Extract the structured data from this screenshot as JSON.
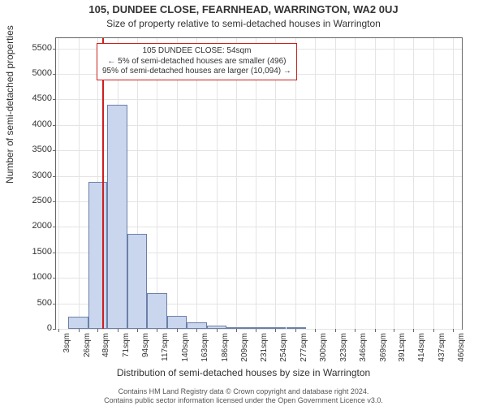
{
  "title": "105, DUNDEE CLOSE, FEARNHEAD, WARRINGTON, WA2 0UJ",
  "subtitle": "Size of property relative to semi-detached houses in Warrington",
  "ylabel": "Number of semi-detached properties",
  "xlabel": "Distribution of semi-detached houses by size in Warrington",
  "footer_line1": "Contains HM Land Registry data © Crown copyright and database right 2024.",
  "footer_line2": "Contains public sector information licensed under the Open Government Licence v3.0.",
  "annotation": {
    "line1": "105 DUNDEE CLOSE: 54sqm",
    "line2": "← 5% of semi-detached houses are smaller (496)",
    "line3": "95% of semi-detached houses are larger (10,094) →"
  },
  "chart": {
    "type": "histogram",
    "x_min": 0,
    "x_max": 470,
    "y_min": 0,
    "y_max": 5700,
    "bar_fill": "#c9d6ee",
    "bar_border": "#6b7fa8",
    "grid_color": "#e4e4e4",
    "axis_color": "#666666",
    "marker_color": "#cc1f1f",
    "marker_x": 54,
    "y_ticks": [
      0,
      500,
      1000,
      1500,
      2000,
      2500,
      3000,
      3500,
      4000,
      4500,
      5000,
      5500
    ],
    "x_ticks": [
      3,
      26,
      48,
      71,
      94,
      117,
      140,
      163,
      186,
      209,
      231,
      254,
      277,
      300,
      323,
      346,
      369,
      391,
      414,
      437,
      460
    ],
    "x_tick_labels": [
      "3sqm",
      "26sqm",
      "48sqm",
      "71sqm",
      "94sqm",
      "117sqm",
      "140sqm",
      "163sqm",
      "186sqm",
      "209sqm",
      "231sqm",
      "254sqm",
      "277sqm",
      "300sqm",
      "323sqm",
      "346sqm",
      "369sqm",
      "391sqm",
      "414sqm",
      "437sqm",
      "460sqm"
    ],
    "bars": [
      {
        "x0": 14.5,
        "x1": 37.5,
        "y": 240
      },
      {
        "x0": 37.5,
        "x1": 59.5,
        "y": 2880
      },
      {
        "x0": 59.5,
        "x1": 82.5,
        "y": 4400
      },
      {
        "x0": 82.5,
        "x1": 105.5,
        "y": 1870
      },
      {
        "x0": 105.5,
        "x1": 128.5,
        "y": 700
      },
      {
        "x0": 128.5,
        "x1": 151.5,
        "y": 260
      },
      {
        "x0": 151.5,
        "x1": 174.5,
        "y": 120
      },
      {
        "x0": 174.5,
        "x1": 197.5,
        "y": 70
      },
      {
        "x0": 197.5,
        "x1": 220.5,
        "y": 40
      },
      {
        "x0": 220.5,
        "x1": 243.5,
        "y": 30
      },
      {
        "x0": 243.5,
        "x1": 266.5,
        "y": 25
      },
      {
        "x0": 266.5,
        "x1": 289.5,
        "y": 25
      }
    ]
  }
}
